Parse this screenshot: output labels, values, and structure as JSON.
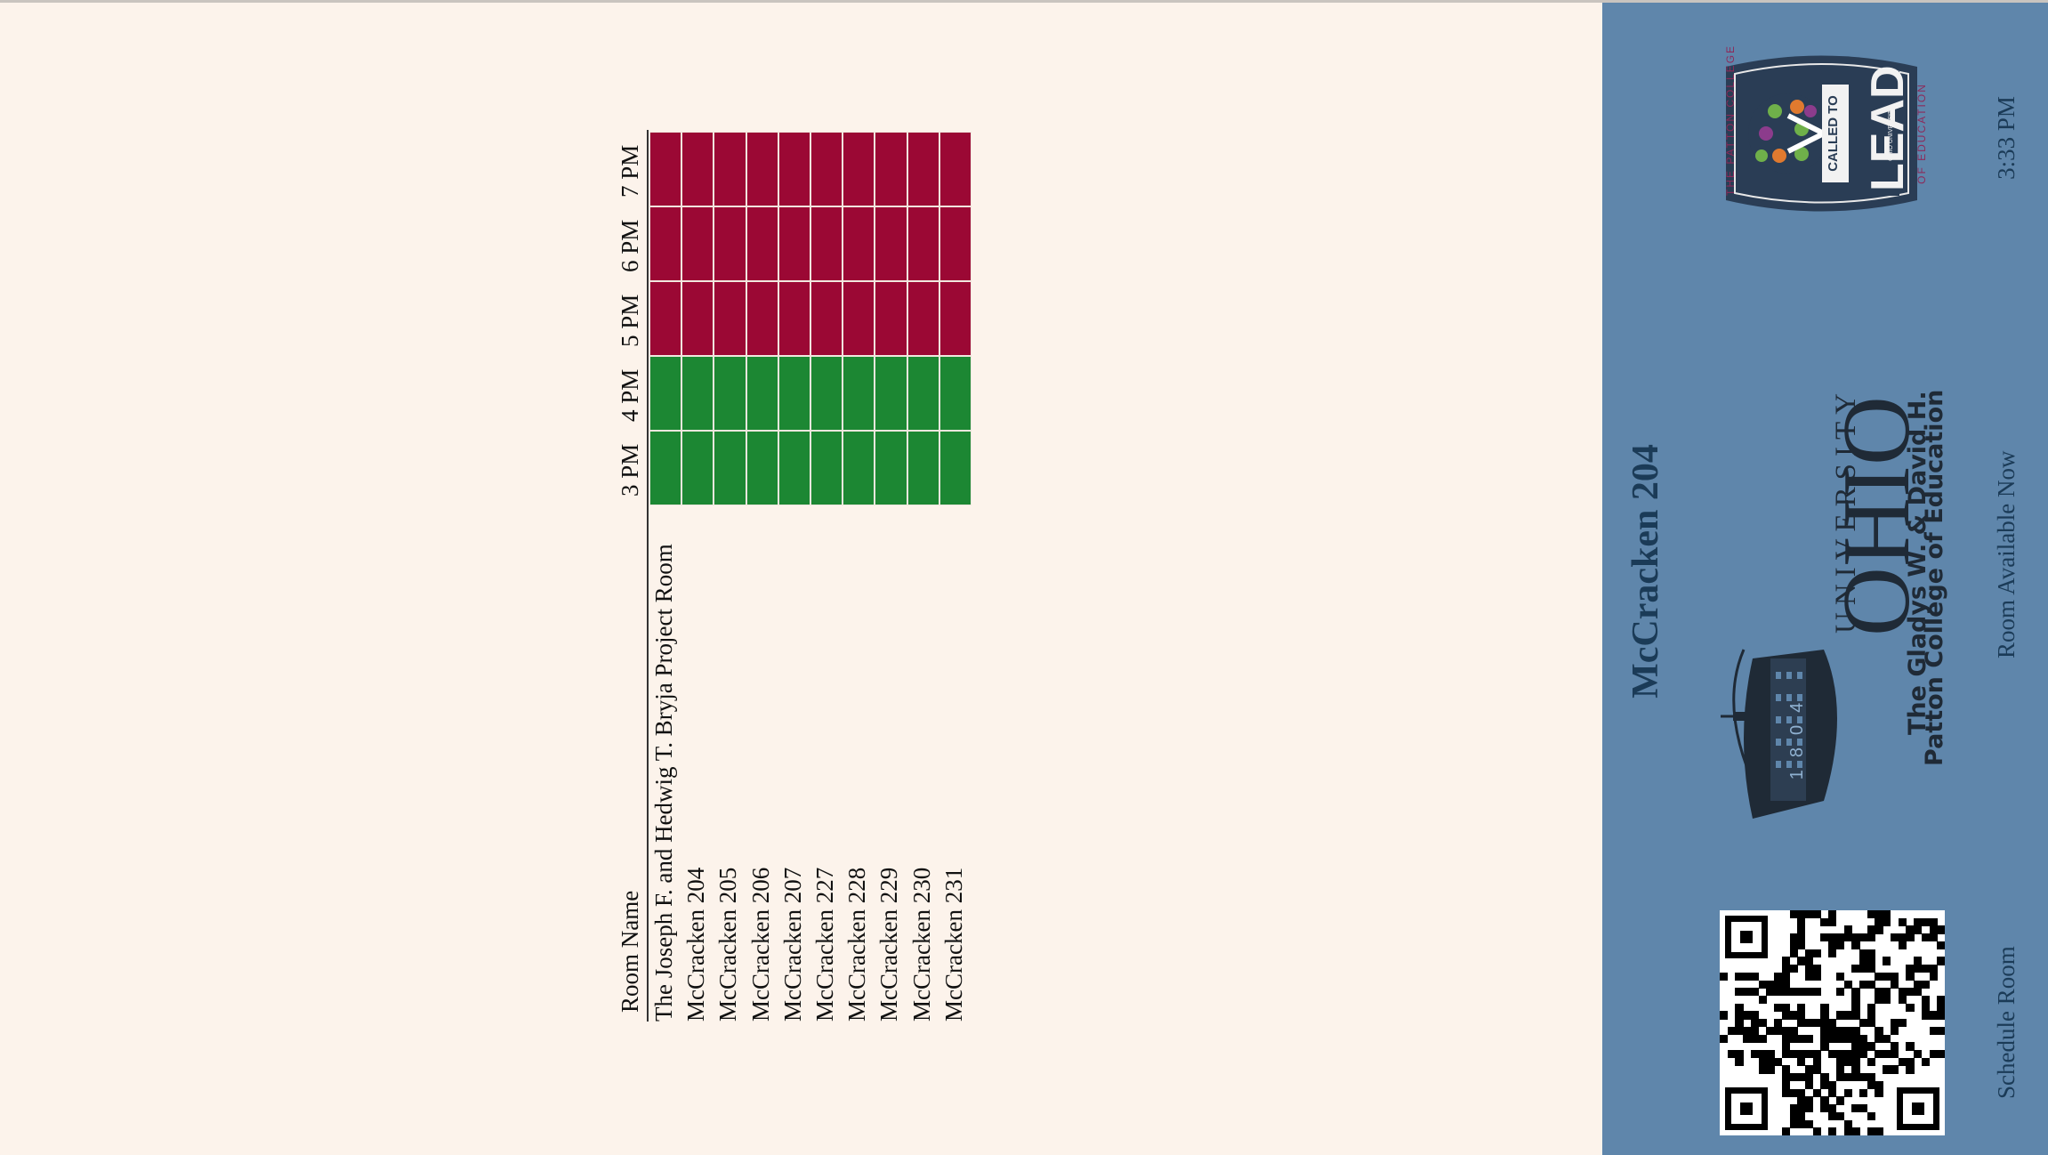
{
  "header": {
    "room_title": "McCracken 204",
    "clock": "3:33 PM",
    "status": "Room Available Now",
    "schedule_link": "Schedule Room"
  },
  "branding": {
    "university_name_top": "OHIO",
    "university_name_bottom": "UNIVERSITY",
    "founded_year": "1804",
    "college_name_line1": "The Gladys W. & David H.",
    "college_name_line2": "Patton College of Education",
    "seal_text_top": "THE PATTON COLLEGE",
    "seal_text_bottom": "OF EDUCATION",
    "seal_banner": "CALLED TO",
    "seal_word": "LEAD",
    "seal_small": "OHIO UNIVERSITY"
  },
  "schedule": {
    "room_header": "Room Name",
    "time_slots": [
      "3 PM",
      "4 PM",
      "5 PM",
      "6 PM",
      "7 PM"
    ],
    "rooms": [
      "The Joseph F. and Hedwig T. Bryja Project Room",
      "McCracken 204",
      "McCracken 205",
      "McCracken 206",
      "McCracken 207",
      "McCracken 227",
      "McCracken 228",
      "McCracken 229",
      "McCracken 230",
      "McCracken 231"
    ],
    "availability": [
      [
        "available",
        "available",
        "booked",
        "booked",
        "booked"
      ],
      [
        "available",
        "available",
        "booked",
        "booked",
        "booked"
      ],
      [
        "available",
        "available",
        "booked",
        "booked",
        "booked"
      ],
      [
        "available",
        "available",
        "booked",
        "booked",
        "booked"
      ],
      [
        "available",
        "available",
        "booked",
        "booked",
        "booked"
      ],
      [
        "available",
        "available",
        "booked",
        "booked",
        "booked"
      ],
      [
        "available",
        "available",
        "booked",
        "booked",
        "booked"
      ],
      [
        "available",
        "available",
        "booked",
        "booked",
        "booked"
      ],
      [
        "available",
        "available",
        "booked",
        "booked",
        "booked"
      ],
      [
        "available",
        "available",
        "booked",
        "booked",
        "booked"
      ]
    ]
  },
  "colors": {
    "available": "#1c8733",
    "booked": "#9b0834",
    "sidebar": "#5f86ab",
    "background": "#fcf3eb",
    "title_text": "#1b3b57"
  }
}
